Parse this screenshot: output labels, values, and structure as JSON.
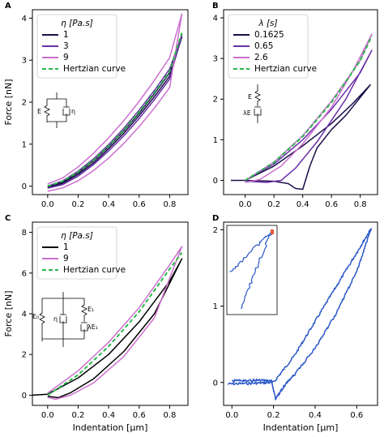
{
  "chart_data": [
    {
      "panel": "A",
      "type": "line",
      "ylabel": "Force [nN]",
      "xlim": [
        -0.1,
        0.92
      ],
      "ylim": [
        -0.2,
        4.2
      ],
      "xticks": [
        "0.0",
        "0.2",
        "0.4",
        "0.6",
        "0.8"
      ],
      "yticks": [
        "0",
        "1",
        "2",
        "3",
        "4"
      ],
      "legend": {
        "title": "η [Pa.s]",
        "placement": "top-left"
      },
      "inset_labels": [
        "E",
        "η"
      ],
      "series": [
        {
          "name": "1",
          "color": "#1b0f4a",
          "style": "solid",
          "load": [
            [
              0,
              -0.02
            ],
            [
              0.1,
              0.1
            ],
            [
              0.2,
              0.32
            ],
            [
              0.3,
              0.6
            ],
            [
              0.4,
              0.94
            ],
            [
              0.5,
              1.32
            ],
            [
              0.6,
              1.74
            ],
            [
              0.7,
              2.2
            ],
            [
              0.8,
              2.7
            ],
            [
              0.88,
              3.55
            ]
          ],
          "unload": [
            [
              0.88,
              3.55
            ],
            [
              0.8,
              2.62
            ],
            [
              0.7,
              2.13
            ],
            [
              0.6,
              1.68
            ],
            [
              0.5,
              1.26
            ],
            [
              0.4,
              0.89
            ],
            [
              0.3,
              0.55
            ],
            [
              0.2,
              0.28
            ],
            [
              0.1,
              0.07
            ],
            [
              0,
              -0.03
            ]
          ]
        },
        {
          "name": "3",
          "color": "#6a2fa6",
          "style": "solid",
          "load": [
            [
              0,
              0
            ],
            [
              0.1,
              0.13
            ],
            [
              0.2,
              0.36
            ],
            [
              0.3,
              0.65
            ],
            [
              0.4,
              0.99
            ],
            [
              0.5,
              1.38
            ],
            [
              0.6,
              1.81
            ],
            [
              0.7,
              2.28
            ],
            [
              0.8,
              2.79
            ],
            [
              0.88,
              3.6
            ]
          ],
          "unload": [
            [
              0.88,
              3.6
            ],
            [
              0.8,
              2.55
            ],
            [
              0.7,
              2.06
            ],
            [
              0.6,
              1.61
            ],
            [
              0.5,
              1.2
            ],
            [
              0.4,
              0.84
            ],
            [
              0.3,
              0.51
            ],
            [
              0.2,
              0.24
            ],
            [
              0.1,
              0.04
            ],
            [
              0,
              -0.05
            ]
          ]
        },
        {
          "name": "9",
          "color": "#cc6fcf",
          "style": "solid",
          "load": [
            [
              0,
              0.05
            ],
            [
              0.1,
              0.2
            ],
            [
              0.2,
              0.46
            ],
            [
              0.3,
              0.78
            ],
            [
              0.4,
              1.15
            ],
            [
              0.5,
              1.56
            ],
            [
              0.6,
              2.02
            ],
            [
              0.7,
              2.52
            ],
            [
              0.8,
              3.06
            ],
            [
              0.88,
              4.1
            ]
          ],
          "unload": [
            [
              0.88,
              4.1
            ],
            [
              0.8,
              2.35
            ],
            [
              0.7,
              1.86
            ],
            [
              0.6,
              1.42
            ],
            [
              0.5,
              1.02
            ],
            [
              0.4,
              0.67
            ],
            [
              0.3,
              0.37
            ],
            [
              0.2,
              0.13
            ],
            [
              0.1,
              -0.04
            ],
            [
              0,
              -0.12
            ]
          ]
        },
        {
          "name": "Hertzian curve",
          "color": "#2ab84a",
          "style": "dashed",
          "load": [
            [
              0,
              0
            ],
            [
              0.1,
              0.12
            ],
            [
              0.2,
              0.34
            ],
            [
              0.3,
              0.62
            ],
            [
              0.4,
              0.96
            ],
            [
              0.5,
              1.34
            ],
            [
              0.6,
              1.77
            ],
            [
              0.7,
              2.23
            ],
            [
              0.8,
              2.73
            ],
            [
              0.88,
              3.65
            ]
          ],
          "unload": []
        }
      ]
    },
    {
      "panel": "B",
      "type": "line",
      "xlim": [
        -0.15,
        0.92
      ],
      "ylim": [
        -0.35,
        4.2
      ],
      "xticks": [
        "0.0",
        "0.2",
        "0.4",
        "0.6",
        "0.8"
      ],
      "yticks": [
        "0",
        "1",
        "2",
        "3",
        "4"
      ],
      "legend": {
        "title": "λ [s]",
        "placement": "top-left"
      },
      "inset_labels": [
        "E",
        "λE"
      ],
      "series": [
        {
          "name": "0.1625",
          "color": "#1b0f4a",
          "style": "solid",
          "load": [
            [
              -0.1,
              0
            ],
            [
              0,
              0
            ],
            [
              0.2,
              0.35
            ],
            [
              0.4,
              0.85
            ],
            [
              0.6,
              1.4
            ],
            [
              0.75,
              1.9
            ],
            [
              0.87,
              2.35
            ]
          ],
          "unload": [
            [
              0.87,
              2.35
            ],
            [
              0.7,
              1.6
            ],
            [
              0.6,
              1.25
            ],
            [
              0.5,
              0.8
            ],
            [
              0.45,
              0.35
            ],
            [
              0.4,
              -0.22
            ],
            [
              0.35,
              -0.2
            ],
            [
              0.3,
              -0.08
            ],
            [
              0.2,
              -0.02
            ],
            [
              0,
              0
            ]
          ]
        },
        {
          "name": "0.65",
          "color": "#6a2fa6",
          "style": "solid",
          "load": [
            [
              0,
              0
            ],
            [
              0.2,
              0.4
            ],
            [
              0.4,
              1.0
            ],
            [
              0.6,
              1.75
            ],
            [
              0.8,
              2.65
            ],
            [
              0.88,
              3.2
            ]
          ],
          "unload": [
            [
              0.88,
              3.2
            ],
            [
              0.7,
              2.0
            ],
            [
              0.5,
              0.95
            ],
            [
              0.35,
              0.3
            ],
            [
              0.25,
              0.0
            ],
            [
              0.15,
              -0.05
            ],
            [
              0,
              -0.02
            ]
          ]
        },
        {
          "name": "2.6",
          "color": "#cc6fcf",
          "style": "solid",
          "load": [
            [
              0,
              0
            ],
            [
              0.2,
              0.45
            ],
            [
              0.4,
              1.1
            ],
            [
              0.6,
              1.95
            ],
            [
              0.8,
              2.95
            ],
            [
              0.88,
              3.6
            ]
          ],
          "unload": [
            [
              0.88,
              3.6
            ],
            [
              0.75,
              2.7
            ],
            [
              0.6,
              1.8
            ],
            [
              0.4,
              0.9
            ],
            [
              0.25,
              0.35
            ],
            [
              0.1,
              0.02
            ],
            [
              0,
              -0.05
            ]
          ]
        },
        {
          "name": "Hertzian curve",
          "color": "#2ab84a",
          "style": "dashed",
          "load": [
            [
              0,
              0
            ],
            [
              0.2,
              0.44
            ],
            [
              0.4,
              1.08
            ],
            [
              0.6,
              1.92
            ],
            [
              0.8,
              2.95
            ],
            [
              0.88,
              3.55
            ]
          ],
          "unload": []
        }
      ]
    },
    {
      "panel": "C",
      "type": "line",
      "xlabel": "Indentation [µm]",
      "ylabel": "Force [nN]",
      "xlim": [
        -0.1,
        0.92
      ],
      "ylim": [
        -0.5,
        8.5
      ],
      "xticks": [
        "0.0",
        "0.2",
        "0.4",
        "0.6",
        "0.8"
      ],
      "yticks": [
        "0",
        "2",
        "4",
        "6",
        "8"
      ],
      "legend": {
        "title": "η [Pa.s]",
        "placement": "top-left"
      },
      "inset_labels": [
        "E₀",
        "η",
        "E₁",
        "λE₁"
      ],
      "series": [
        {
          "name": "1",
          "color": "#000000",
          "style": "solid",
          "load": [
            [
              -0.1,
              0
            ],
            [
              0,
              0.05
            ],
            [
              0.2,
              0.85
            ],
            [
              0.4,
              2.0
            ],
            [
              0.6,
              3.6
            ],
            [
              0.8,
              5.6
            ],
            [
              0.88,
              6.7
            ]
          ],
          "unload": [
            [
              0.88,
              6.7
            ],
            [
              0.7,
              4.0
            ],
            [
              0.5,
              2.15
            ],
            [
              0.3,
              0.8
            ],
            [
              0.15,
              0.12
            ],
            [
              0.07,
              -0.12
            ],
            [
              0,
              -0.05
            ]
          ]
        },
        {
          "name": "9",
          "color": "#cc6fcf",
          "style": "solid",
          "load": [
            [
              0,
              0.1
            ],
            [
              0.2,
              1.2
            ],
            [
              0.4,
              2.6
            ],
            [
              0.6,
              4.3
            ],
            [
              0.8,
              6.4
            ],
            [
              0.88,
              7.3
            ]
          ],
          "unload": [
            [
              0.88,
              7.3
            ],
            [
              0.7,
              3.8
            ],
            [
              0.5,
              1.9
            ],
            [
              0.3,
              0.6
            ],
            [
              0.15,
              0.0
            ],
            [
              0.05,
              -0.2
            ],
            [
              0,
              -0.1
            ]
          ]
        },
        {
          "name": "Hertzian curve",
          "color": "#2ab84a",
          "style": "dashed",
          "load": [
            [
              0,
              0
            ],
            [
              0.2,
              1.0
            ],
            [
              0.4,
              2.4
            ],
            [
              0.6,
              4.1
            ],
            [
              0.8,
              6.2
            ],
            [
              0.88,
              7.0
            ]
          ],
          "unload": []
        }
      ]
    },
    {
      "panel": "D",
      "type": "line",
      "xlabel": "Indentation [µm]",
      "xlim": [
        -0.04,
        0.7
      ],
      "ylim": [
        -0.3,
        2.1
      ],
      "xticks": [
        "0.0",
        "0.2",
        "0.4",
        "0.6"
      ],
      "yticks": [
        "0",
        "1",
        "2"
      ],
      "series": [
        {
          "name": "",
          "color": "#2a57c8",
          "style": "noisy",
          "load": [
            [
              -0.02,
              -0.02
            ],
            [
              0.1,
              -0.01
            ],
            [
              0.2,
              0.0
            ],
            [
              0.3,
              0.35
            ],
            [
              0.4,
              0.8
            ],
            [
              0.5,
              1.25
            ],
            [
              0.6,
              1.7
            ],
            [
              0.67,
              2.02
            ]
          ],
          "unload": [
            [
              0.67,
              2.02
            ],
            [
              0.6,
              1.45
            ],
            [
              0.5,
              0.9
            ],
            [
              0.4,
              0.45
            ],
            [
              0.3,
              0.1
            ],
            [
              0.25,
              -0.05
            ],
            [
              0.21,
              -0.22
            ],
            [
              0.19,
              0.02
            ],
            [
              0.1,
              0.03
            ],
            [
              0,
              0.02
            ]
          ]
        }
      ]
    }
  ]
}
